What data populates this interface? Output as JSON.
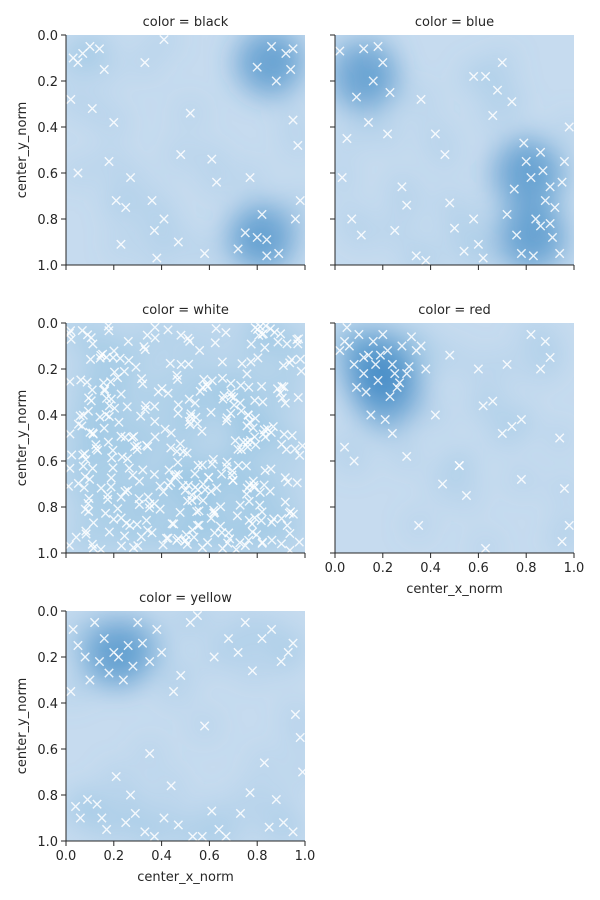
{
  "figure": {
    "xlabel": "center_x_norm",
    "ylabel": "center_y_norm",
    "x_ticks": [
      "0.0",
      "0.2",
      "0.4",
      "0.6",
      "0.8",
      "1.0"
    ],
    "y_ticks": [
      "0.0",
      "0.2",
      "0.4",
      "0.6",
      "0.8",
      "1.0"
    ]
  },
  "chart_data": [
    {
      "type": "scatter",
      "title": "color = black",
      "xlim": [
        0,
        1
      ],
      "ylim": [
        1,
        0
      ],
      "grid": false,
      "density_peaks": [
        [
          0.82,
          0.88
        ],
        [
          0.85,
          0.12
        ]
      ],
      "x": [
        0.03,
        0.05,
        0.07,
        0.1,
        0.14,
        0.16,
        0.18,
        0.2,
        0.21,
        0.25,
        0.27,
        0.33,
        0.36,
        0.37,
        0.38,
        0.41,
        0.48,
        0.52,
        0.58,
        0.61,
        0.63,
        0.72,
        0.75,
        0.77,
        0.8,
        0.82,
        0.84,
        0.86,
        0.88,
        0.89,
        0.92,
        0.94,
        0.95,
        0.96,
        0.97,
        0.98,
        0.02,
        0.05,
        0.11,
        0.23,
        0.41,
        0.47,
        0.95,
        0.8,
        0.84
      ],
      "y": [
        0.1,
        0.12,
        0.08,
        0.05,
        0.06,
        0.15,
        0.55,
        0.38,
        0.72,
        0.75,
        0.62,
        0.12,
        0.72,
        0.85,
        0.97,
        0.8,
        0.52,
        0.34,
        0.95,
        0.54,
        0.64,
        0.93,
        0.86,
        0.62,
        0.88,
        0.78,
        0.96,
        0.05,
        0.2,
        0.95,
        0.08,
        0.15,
        0.06,
        0.8,
        0.48,
        0.72,
        0.28,
        0.6,
        0.32,
        0.91,
        0.02,
        0.9,
        0.37,
        0.14,
        0.89
      ]
    },
    {
      "type": "scatter",
      "title": "color = blue",
      "xlim": [
        0,
        1
      ],
      "ylim": [
        1,
        0
      ],
      "grid": false,
      "density_peaks": [
        [
          0.82,
          0.88
        ],
        [
          0.8,
          0.6
        ],
        [
          0.12,
          0.18
        ]
      ],
      "x": [
        0.02,
        0.05,
        0.09,
        0.12,
        0.16,
        0.2,
        0.22,
        0.25,
        0.3,
        0.34,
        0.38,
        0.42,
        0.46,
        0.5,
        0.54,
        0.58,
        0.6,
        0.63,
        0.66,
        0.7,
        0.72,
        0.75,
        0.78,
        0.8,
        0.82,
        0.84,
        0.86,
        0.88,
        0.9,
        0.92,
        0.94,
        0.96,
        0.98,
        0.03,
        0.07,
        0.11,
        0.14,
        0.18,
        0.23,
        0.28,
        0.36,
        0.48,
        0.58,
        0.62,
        0.68,
        0.74,
        0.79,
        0.83,
        0.87,
        0.91,
        0.95,
        0.76,
        0.86,
        0.9
      ],
      "y": [
        0.07,
        0.45,
        0.27,
        0.06,
        0.2,
        0.12,
        0.43,
        0.85,
        0.74,
        0.96,
        0.98,
        0.43,
        0.52,
        0.84,
        0.94,
        0.8,
        0.91,
        0.18,
        0.35,
        0.12,
        0.78,
        0.67,
        0.95,
        0.55,
        0.62,
        0.8,
        0.83,
        0.72,
        0.66,
        0.75,
        0.95,
        0.55,
        0.4,
        0.62,
        0.8,
        0.87,
        0.38,
        0.05,
        0.25,
        0.66,
        0.28,
        0.73,
        0.18,
        0.97,
        0.24,
        0.29,
        0.47,
        0.96,
        0.59,
        0.88,
        0.64,
        0.87,
        0.51,
        0.82
      ]
    },
    {
      "type": "scatter",
      "title": "color = white",
      "xlim": [
        0,
        1
      ],
      "ylim": [
        1,
        0
      ],
      "grid": false,
      "note_points": "dense uniform cloud",
      "seed": 7,
      "n_points": 380
    },
    {
      "type": "scatter",
      "title": "color = red",
      "xlim": [
        0,
        1
      ],
      "ylim": [
        1,
        0
      ],
      "grid": false,
      "density_peaks": [
        [
          0.17,
          0.18
        ],
        [
          0.22,
          0.3
        ]
      ],
      "x": [
        0.02,
        0.04,
        0.06,
        0.08,
        0.1,
        0.12,
        0.14,
        0.16,
        0.18,
        0.2,
        0.22,
        0.24,
        0.26,
        0.28,
        0.3,
        0.32,
        0.34,
        0.36,
        0.13,
        0.17,
        0.21,
        0.25,
        0.09,
        0.15,
        0.19,
        0.23,
        0.27,
        0.31,
        0.05,
        0.12,
        0.24,
        0.38,
        0.42,
        0.48,
        0.52,
        0.55,
        0.6,
        0.62,
        0.66,
        0.7,
        0.72,
        0.74,
        0.78,
        0.82,
        0.86,
        0.9,
        0.94,
        0.96,
        0.98,
        0.08,
        0.3,
        0.45,
        0.52,
        0.63,
        0.78,
        0.88,
        0.95,
        0.35,
        0.04
      ],
      "y": [
        0.12,
        0.08,
        0.1,
        0.18,
        0.05,
        0.22,
        0.14,
        0.08,
        0.25,
        0.05,
        0.12,
        0.18,
        0.28,
        0.1,
        0.22,
        0.06,
        0.12,
        0.1,
        0.3,
        0.18,
        0.42,
        0.22,
        0.28,
        0.4,
        0.14,
        0.32,
        0.26,
        0.19,
        0.02,
        0.15,
        0.48,
        0.2,
        0.4,
        0.14,
        0.62,
        0.75,
        0.2,
        0.36,
        0.34,
        0.48,
        0.18,
        0.45,
        0.42,
        0.05,
        0.2,
        0.15,
        0.5,
        0.72,
        0.88,
        0.6,
        0.58,
        0.7,
        0.62,
        0.98,
        0.68,
        0.08,
        0.95,
        0.88,
        0.54
      ]
    },
    {
      "type": "scatter",
      "title": "color = yellow",
      "xlim": [
        0,
        1
      ],
      "ylim": [
        1,
        0
      ],
      "grid": false,
      "density_peaks": [
        [
          0.22,
          0.18
        ]
      ],
      "x": [
        0.03,
        0.05,
        0.08,
        0.1,
        0.12,
        0.14,
        0.16,
        0.18,
        0.2,
        0.22,
        0.24,
        0.26,
        0.28,
        0.3,
        0.32,
        0.35,
        0.38,
        0.4,
        0.45,
        0.48,
        0.52,
        0.58,
        0.62,
        0.68,
        0.72,
        0.78,
        0.82,
        0.86,
        0.9,
        0.93,
        0.96,
        0.98,
        0.04,
        0.06,
        0.09,
        0.13,
        0.17,
        0.21,
        0.25,
        0.29,
        0.33,
        0.37,
        0.41,
        0.47,
        0.53,
        0.57,
        0.61,
        0.67,
        0.73,
        0.77,
        0.83,
        0.88,
        0.91,
        0.95,
        0.99,
        0.15,
        0.35,
        0.55,
        0.75,
        0.95,
        0.02,
        0.27,
        0.85,
        0.64,
        0.44
      ],
      "y": [
        0.08,
        0.15,
        0.2,
        0.3,
        0.05,
        0.22,
        0.12,
        0.27,
        0.18,
        0.2,
        0.3,
        0.15,
        0.24,
        0.05,
        0.14,
        0.22,
        0.08,
        0.18,
        0.35,
        0.28,
        0.05,
        0.5,
        0.2,
        0.12,
        0.18,
        0.26,
        0.12,
        0.08,
        0.22,
        0.18,
        0.45,
        0.55,
        0.85,
        0.9,
        0.82,
        0.84,
        0.95,
        0.72,
        0.92,
        0.88,
        0.96,
        0.98,
        0.9,
        0.93,
        0.98,
        0.98,
        0.87,
        0.98,
        0.88,
        0.79,
        0.66,
        0.82,
        0.92,
        0.96,
        0.7,
        0.9,
        0.62,
        0.02,
        0.05,
        0.14,
        0.35,
        0.8,
        0.94,
        0.95,
        0.76
      ]
    }
  ]
}
